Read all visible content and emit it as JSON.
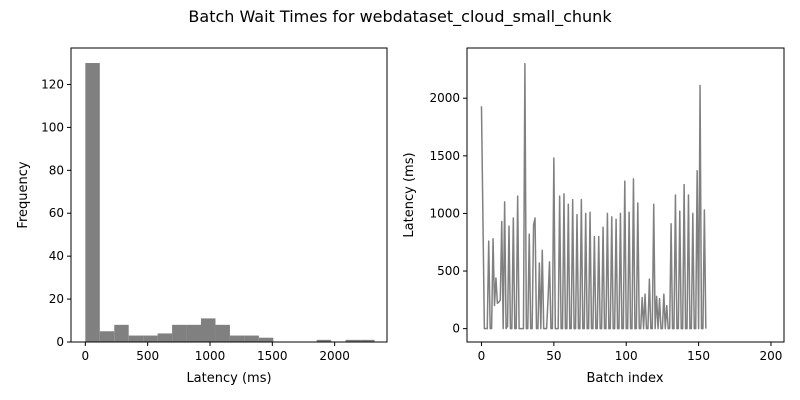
{
  "figure": {
    "title": "Batch Wait Times for webdataset_cloud_small_chunk"
  },
  "colors": {
    "bars": "#808080",
    "line": "#808080",
    "axes": "#000000",
    "background": "#ffffff"
  },
  "chart_data": [
    {
      "type": "bar",
      "title": "",
      "xlabel": "Latency (ms)",
      "ylabel": "Frequency",
      "xlim": [
        -115,
        2420
      ],
      "ylim": [
        0,
        137
      ],
      "xticks": [
        0,
        500,
        1000,
        1500,
        2000
      ],
      "yticks": [
        0,
        20,
        40,
        60,
        80,
        100,
        120
      ],
      "bins": [
        {
          "start": 0,
          "end": 116,
          "count": 130
        },
        {
          "start": 116,
          "end": 232,
          "count": 5
        },
        {
          "start": 232,
          "end": 348,
          "count": 8
        },
        {
          "start": 348,
          "end": 464,
          "count": 3
        },
        {
          "start": 464,
          "end": 580,
          "count": 3
        },
        {
          "start": 580,
          "end": 696,
          "count": 4
        },
        {
          "start": 696,
          "end": 812,
          "count": 8
        },
        {
          "start": 812,
          "end": 928,
          "count": 8
        },
        {
          "start": 928,
          "end": 1044,
          "count": 11
        },
        {
          "start": 1044,
          "end": 1160,
          "count": 8
        },
        {
          "start": 1160,
          "end": 1276,
          "count": 3
        },
        {
          "start": 1276,
          "end": 1392,
          "count": 3
        },
        {
          "start": 1392,
          "end": 1508,
          "count": 2
        },
        {
          "start": 1508,
          "end": 1624,
          "count": 0
        },
        {
          "start": 1624,
          "end": 1740,
          "count": 0
        },
        {
          "start": 1740,
          "end": 1856,
          "count": 0
        },
        {
          "start": 1856,
          "end": 1972,
          "count": 1
        },
        {
          "start": 1972,
          "end": 2088,
          "count": 0
        },
        {
          "start": 2088,
          "end": 2204,
          "count": 1
        },
        {
          "start": 2204,
          "end": 2320,
          "count": 1
        }
      ]
    },
    {
      "type": "line",
      "title": "",
      "xlabel": "Batch index",
      "ylabel": "Latency (ms)",
      "xlim": [
        -10,
        209
      ],
      "ylim": [
        -116,
        2436
      ],
      "xticks": [
        0,
        50,
        100,
        150,
        200
      ],
      "yticks": [
        0,
        500,
        1000,
        1500,
        2000
      ],
      "series": [
        {
          "name": "",
          "points": [
            [
              0,
              1930
            ],
            [
              2,
              0
            ],
            [
              4,
              0
            ],
            [
              5,
              760
            ],
            [
              6,
              0
            ],
            [
              7,
              0
            ],
            [
              8,
              780
            ],
            [
              9,
              200
            ],
            [
              10,
              440
            ],
            [
              11,
              220
            ],
            [
              12,
              230
            ],
            [
              13,
              250
            ],
            [
              14,
              930
            ],
            [
              15,
              0
            ],
            [
              16,
              1100
            ],
            [
              17,
              0
            ],
            [
              18,
              20
            ],
            [
              19,
              890
            ],
            [
              20,
              0
            ],
            [
              21,
              0
            ],
            [
              22,
              960
            ],
            [
              23,
              0
            ],
            [
              24,
              0
            ],
            [
              25,
              1150
            ],
            [
              26,
              0
            ],
            [
              27,
              0
            ],
            [
              28,
              0
            ],
            [
              29,
              0
            ],
            [
              30,
              2300
            ],
            [
              31,
              0
            ],
            [
              32,
              0
            ],
            [
              33,
              820
            ],
            [
              34,
              0
            ],
            [
              35,
              0
            ],
            [
              36,
              900
            ],
            [
              37,
              960
            ],
            [
              38,
              0
            ],
            [
              39,
              0
            ],
            [
              40,
              570
            ],
            [
              41,
              0
            ],
            [
              42,
              680
            ],
            [
              43,
              0
            ],
            [
              44,
              0
            ],
            [
              45,
              0
            ],
            [
              46,
              260
            ],
            [
              47,
              580
            ],
            [
              48,
              0
            ],
            [
              49,
              0
            ],
            [
              50,
              1480
            ],
            [
              51,
              0
            ],
            [
              52,
              0
            ],
            [
              53,
              0
            ],
            [
              54,
              1150
            ],
            [
              55,
              0
            ],
            [
              56,
              0
            ],
            [
              57,
              1170
            ],
            [
              58,
              0
            ],
            [
              59,
              0
            ],
            [
              60,
              1080
            ],
            [
              61,
              0
            ],
            [
              62,
              0
            ],
            [
              63,
              1120
            ],
            [
              64,
              0
            ],
            [
              65,
              0
            ],
            [
              66,
              990
            ],
            [
              67,
              0
            ],
            [
              68,
              0
            ],
            [
              69,
              1120
            ],
            [
              70,
              0
            ],
            [
              71,
              0
            ],
            [
              72,
              1000
            ],
            [
              73,
              0
            ],
            [
              74,
              0
            ],
            [
              75,
              1010
            ],
            [
              76,
              0
            ],
            [
              77,
              0
            ],
            [
              78,
              800
            ],
            [
              79,
              0
            ],
            [
              80,
              0
            ],
            [
              81,
              800
            ],
            [
              82,
              0
            ],
            [
              83,
              0
            ],
            [
              84,
              880
            ],
            [
              85,
              0
            ],
            [
              86,
              0
            ],
            [
              87,
              1000
            ],
            [
              88,
              0
            ],
            [
              89,
              0
            ],
            [
              90,
              970
            ],
            [
              91,
              0
            ],
            [
              92,
              0
            ],
            [
              93,
              950
            ],
            [
              94,
              0
            ],
            [
              95,
              0
            ],
            [
              96,
              1000
            ],
            [
              97,
              0
            ],
            [
              98,
              0
            ],
            [
              99,
              1280
            ],
            [
              100,
              0
            ],
            [
              101,
              0
            ],
            [
              102,
              1010
            ],
            [
              103,
              0
            ],
            [
              104,
              0
            ],
            [
              105,
              1300
            ],
            [
              106,
              0
            ],
            [
              107,
              0
            ],
            [
              108,
              1090
            ],
            [
              109,
              0
            ],
            [
              110,
              0
            ],
            [
              111,
              270
            ],
            [
              112,
              0
            ],
            [
              113,
              300
            ],
            [
              114,
              0
            ],
            [
              115,
              0
            ],
            [
              116,
              430
            ],
            [
              117,
              0
            ],
            [
              118,
              0
            ],
            [
              119,
              1080
            ],
            [
              120,
              0
            ],
            [
              121,
              280
            ],
            [
              122,
              0
            ],
            [
              123,
              260
            ],
            [
              124,
              0
            ],
            [
              125,
              0
            ],
            [
              126,
              300
            ],
            [
              127,
              0
            ],
            [
              128,
              200
            ],
            [
              129,
              0
            ],
            [
              130,
              0
            ],
            [
              131,
              910
            ],
            [
              132,
              0
            ],
            [
              133,
              0
            ],
            [
              134,
              1160
            ],
            [
              135,
              0
            ],
            [
              136,
              0
            ],
            [
              137,
              1020
            ],
            [
              138,
              0
            ],
            [
              139,
              0
            ],
            [
              140,
              1250
            ],
            [
              141,
              0
            ],
            [
              142,
              0
            ],
            [
              143,
              1160
            ],
            [
              144,
              0
            ],
            [
              145,
              0
            ],
            [
              146,
              1000
            ],
            [
              147,
              0
            ],
            [
              148,
              0
            ],
            [
              149,
              1370
            ],
            [
              150,
              0
            ],
            [
              151,
              2110
            ],
            [
              152,
              0
            ],
            [
              153,
              0
            ],
            [
              154,
              1030
            ],
            [
              155,
              0
            ]
          ]
        }
      ]
    }
  ]
}
